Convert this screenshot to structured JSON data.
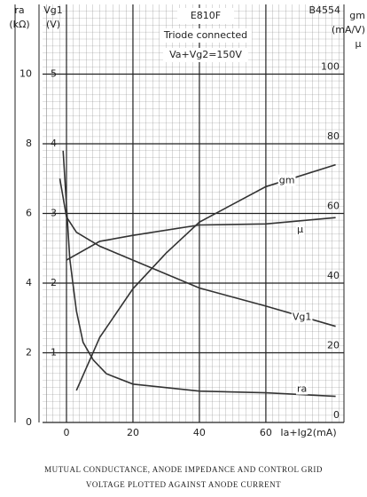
{
  "chart_data": {
    "type": "line",
    "title": "E810F",
    "code": "B4554",
    "subtitle": "Triode connected",
    "condition": "Va+Vg2=150V",
    "caption": [
      "MUTUAL CONDUCTANCE, ANODE IMPEDANCE AND CONTROL GRID",
      "VOLTAGE PLOTTED AGAINST ANODE CURRENT"
    ],
    "xlabel": "Ia+Ig2(mA)",
    "ylabel": [
      "ra",
      "(kΩ)"
    ],
    "y3label": [
      "Vg1",
      "(V)"
    ],
    "y2label": [
      "gm",
      "(mA/V)",
      "μ"
    ],
    "xlim": [
      -7.2,
      83.5
    ],
    "xticks": [
      0,
      20,
      40,
      60
    ],
    "ylim": [
      0,
      12
    ],
    "yticks": [
      0,
      2,
      4,
      6,
      8,
      10
    ],
    "y3lim": [
      0,
      -6
    ],
    "y3ticks": [
      -1,
      -2,
      -3,
      -4,
      -5
    ],
    "y2lim": [
      0,
      120
    ],
    "y2ticks": [
      0,
      20,
      40,
      60,
      80,
      100
    ],
    "grid": true,
    "series": [
      {
        "name": "gm",
        "axis": "y2",
        "color": "#333",
        "x": [
          3,
          10,
          20,
          30,
          40,
          60,
          81
        ],
        "values": [
          9.2,
          24.4,
          38.4,
          48.6,
          57.5,
          67.7,
          74
        ]
      },
      {
        "name": "μ",
        "axis": "y2",
        "color": "#333",
        "x": [
          0,
          10,
          20,
          40,
          60,
          81
        ],
        "values": [
          46.6,
          52,
          53.7,
          56.7,
          57,
          58.8
        ]
      },
      {
        "name": "Vg1",
        "axis": "y3",
        "color": "#333",
        "x": [
          -2,
          0,
          3,
          10,
          20,
          40,
          60,
          81
        ],
        "values": [
          -3.5,
          -2.95,
          -2.73,
          -2.53,
          -2.33,
          -1.93,
          -1.67,
          -1.38
        ]
      },
      {
        "name": "ra",
        "axis": "y",
        "color": "#333",
        "x": [
          -1,
          1,
          3,
          5,
          8,
          12,
          20,
          40,
          60,
          81
        ],
        "values": [
          7.8,
          4.7,
          3.2,
          2.3,
          1.8,
          1.4,
          1.1,
          0.9,
          0.85,
          0.75
        ]
      }
    ]
  }
}
